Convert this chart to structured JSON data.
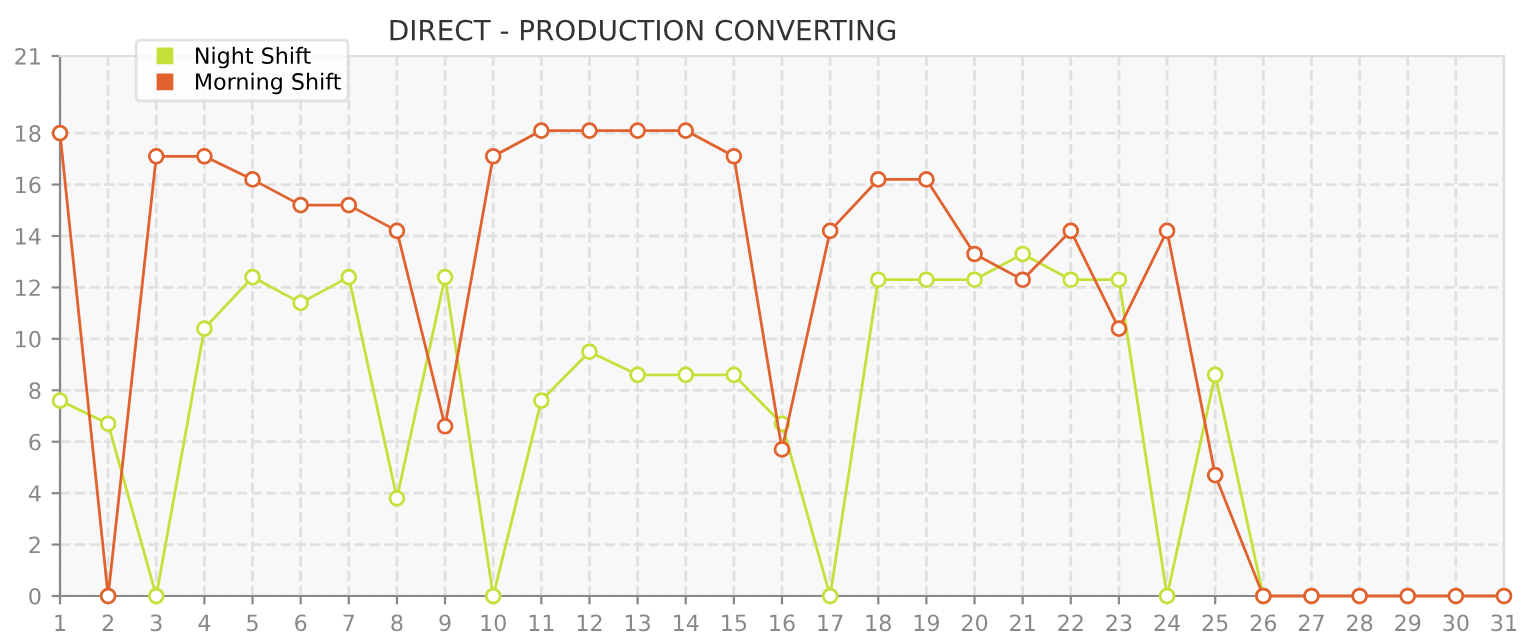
{
  "chart_data": {
    "type": "line",
    "title": "DIRECT - PRODUCTION CONVERTING",
    "x": [
      1,
      2,
      3,
      4,
      5,
      6,
      7,
      8,
      9,
      10,
      11,
      12,
      13,
      14,
      15,
      16,
      17,
      18,
      19,
      20,
      21,
      22,
      23,
      24,
      25,
      26,
      27,
      28,
      29,
      30,
      31
    ],
    "series": [
      {
        "name": "Night Shift",
        "color": "#c5e03a",
        "values": [
          7.6,
          6.7,
          0,
          10.4,
          12.4,
          11.4,
          12.4,
          3.8,
          12.4,
          0,
          7.6,
          9.5,
          8.6,
          8.6,
          8.6,
          6.7,
          0,
          12.3,
          12.3,
          12.3,
          13.3,
          12.3,
          12.3,
          0,
          8.6,
          0,
          null,
          null,
          null,
          null,
          null
        ]
      },
      {
        "name": "Morning Shift",
        "color": "#e0622e",
        "values": [
          18,
          0,
          17.1,
          17.1,
          16.2,
          15.2,
          15.2,
          14.2,
          6.6,
          17.1,
          18.1,
          18.1,
          18.1,
          18.1,
          17.1,
          5.7,
          14.2,
          16.2,
          16.2,
          13.3,
          12.3,
          14.2,
          10.4,
          14.2,
          4.7,
          0,
          0,
          0,
          0,
          0,
          0
        ]
      }
    ],
    "xlim": [
      1,
      31
    ],
    "xticks": [
      1,
      2,
      3,
      4,
      5,
      6,
      7,
      8,
      9,
      10,
      11,
      12,
      13,
      14,
      15,
      16,
      17,
      18,
      19,
      20,
      21,
      22,
      23,
      24,
      25,
      26,
      27,
      28,
      29,
      30,
      31
    ],
    "ylim": [
      0,
      21
    ],
    "yticks": [
      0,
      2,
      4,
      6,
      8,
      10,
      12,
      14,
      16,
      18,
      21
    ],
    "grid": true,
    "legend": "top left",
    "marker": "circle",
    "line_style": "solid"
  }
}
